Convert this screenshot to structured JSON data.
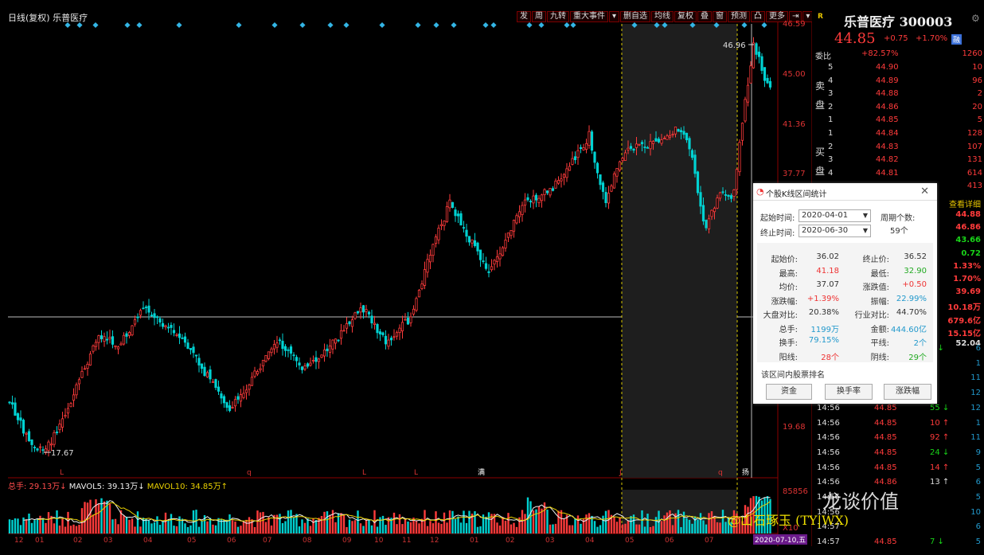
{
  "header": {
    "period": "日线(复权)",
    "stock": "乐普医疗"
  },
  "toolbar": [
    "发",
    "周",
    "九转",
    "重大事件",
    "▾",
    "删自选",
    "均线",
    "复权",
    "叠",
    "窗",
    "预测",
    "凸",
    "更多",
    "⇥",
    "▾"
  ],
  "price_axis": [
    "46.59",
    "45.00",
    "41.36",
    "37.77",
    "19.68"
  ],
  "chart_labels": {
    "high": "46.96",
    "low": "17.67"
  },
  "quote": {
    "name": "乐普医疗 300003",
    "price": "44.85",
    "change": "+0.75",
    "pct": "+1.70%",
    "badge": "融",
    "wb_label": "委比",
    "wb_value": "+82.57%",
    "wb_count": "1260",
    "sell_label": "卖盘",
    "buy_label": "买盘",
    "sell": [
      {
        "lvl": "5",
        "price": "44.90",
        "vol": "10"
      },
      {
        "lvl": "4",
        "price": "44.89",
        "vol": "96"
      },
      {
        "lvl": "3",
        "price": "44.88",
        "vol": "2"
      },
      {
        "lvl": "2",
        "price": "44.86",
        "vol": "20"
      },
      {
        "lvl": "1",
        "price": "44.85",
        "vol": "5"
      }
    ],
    "buy": [
      {
        "lvl": "1",
        "price": "44.84",
        "vol": "128"
      },
      {
        "lvl": "2",
        "price": "44.83",
        "vol": "107"
      },
      {
        "lvl": "3",
        "price": "44.82",
        "vol": "131"
      },
      {
        "lvl": "4",
        "price": "44.81",
        "vol": "614"
      },
      {
        "lvl": "",
        "price": "",
        "vol": "413"
      }
    ],
    "detail_link": "查看详细",
    "stats": [
      "44.88",
      "46.86",
      "43.66",
      "0.72",
      "1.33%",
      "1.70%",
      "39.69",
      "10.18万",
      "679.6亿",
      "15.15亿",
      "52.04"
    ],
    "ticks": [
      {
        "t": "",
        "p": "",
        "v": "6",
        "arrow": "↓",
        "n": "6"
      },
      {
        "t": "",
        "p": "",
        "v": "",
        "arrow": "",
        "n": "1"
      },
      {
        "t": "",
        "p": "",
        "v": "",
        "arrow": "",
        "n": "11"
      },
      {
        "t": "",
        "p": "",
        "v": "",
        "arrow": "↑",
        "n": "12"
      },
      {
        "t": "14:56",
        "p": "44.85",
        "v": "55",
        "arrow": "↓",
        "n": "12"
      },
      {
        "t": "14:56",
        "p": "44.85",
        "v": "10",
        "arrow": "↑",
        "n": "1"
      },
      {
        "t": "14:56",
        "p": "44.85",
        "v": "92",
        "arrow": "↑",
        "n": "11"
      },
      {
        "t": "14:56",
        "p": "44.85",
        "v": "24",
        "arrow": "↓",
        "n": "9"
      },
      {
        "t": "14:56",
        "p": "44.85",
        "v": "14",
        "arrow": "↑",
        "n": "5"
      },
      {
        "t": "14:56",
        "p": "44.86",
        "v": "13",
        "arrow": "↑",
        "n": "6"
      },
      {
        "t": "14:56",
        "p": "",
        "v": "",
        "arrow": "",
        "n": "5"
      },
      {
        "t": "14:56",
        "p": "",
        "v": "",
        "arrow": "",
        "n": "10"
      },
      {
        "t": "14:57",
        "p": "",
        "v": "",
        "arrow": "",
        "n": "6"
      },
      {
        "t": "14:57",
        "p": "44.85",
        "v": "7",
        "arrow": "↓",
        "n": "5"
      }
    ]
  },
  "dialog": {
    "title": "个股K线区间统计",
    "start_label": "起始时间:",
    "start_value": "2020-04-01",
    "end_label": "终止时间:",
    "end_value": "2020-06-30",
    "period_label": "周期个数:",
    "period_value": "59个",
    "stats": [
      {
        "k1": "起始价:",
        "v1": "36.02",
        "c1": "#333",
        "k2": "终止价:",
        "v2": "36.52",
        "c2": "#333"
      },
      {
        "k1": "最高:",
        "v1": "41.18",
        "c1": "#e33",
        "k2": "最低:",
        "v2": "32.90",
        "c2": "#2a2"
      },
      {
        "k1": "均价:",
        "v1": "37.07",
        "c1": "#333",
        "k2": "涨跌值:",
        "v2": "+0.50",
        "c2": "#e33"
      },
      {
        "k1": "涨跌幅:",
        "v1": "+1.39%",
        "c1": "#e33",
        "k2": "振幅:",
        "v2": "22.99%",
        "c2": "#29c"
      },
      {
        "k1": "大盘对比:",
        "v1": "20.38%",
        "c1": "#333",
        "k2": "行业对比:",
        "v2": "44.70%",
        "c2": "#333"
      },
      {
        "k1": "总手:",
        "v1": "1199万",
        "c1": "#29c",
        "k2": "金额:",
        "v2": "444.60亿",
        "c2": "#29c"
      },
      {
        "k1": "换手:",
        "v1": "79.15%",
        "c1": "#29c",
        "k2": "平线:",
        "v2": "2个",
        "c2": "#29c"
      },
      {
        "k1": "阳线:",
        "v1": "28个",
        "c1": "#e33",
        "k2": "阴线:",
        "v2": "29个",
        "c2": "#2a2"
      }
    ],
    "rank_label": "该区间内股票排名",
    "buttons": [
      "资金",
      "换手率",
      "涨跌幅"
    ]
  },
  "volume": {
    "label": "总手: 29.13万↓",
    "mav5": "MAVOL5: 39.13万↓",
    "mav10": "MAVOL10: 34.85万↑",
    "axis_top": "85856",
    "axis_unit": "X10"
  },
  "x_axis": [
    "12",
    "01",
    "02",
    "03",
    "04",
    "05",
    "06",
    "07",
    "08",
    "09",
    "10",
    "11",
    "12",
    "01",
    "02",
    "03",
    "04",
    "05",
    "06",
    "07"
  ],
  "date_tag": "2020-07-10,五",
  "markers": [
    "L",
    "q",
    "L",
    "L",
    "满",
    "J",
    "q",
    "扬"
  ],
  "watermark": "龙谈价值",
  "signature": "@山石琢玉 (TY|WX)",
  "colors": {
    "up": "#ff3b3b",
    "down": "#00d2d2",
    "axis": "#8b0000",
    "ma5": "#f0f0f0",
    "ma10": "#e8d000"
  }
}
